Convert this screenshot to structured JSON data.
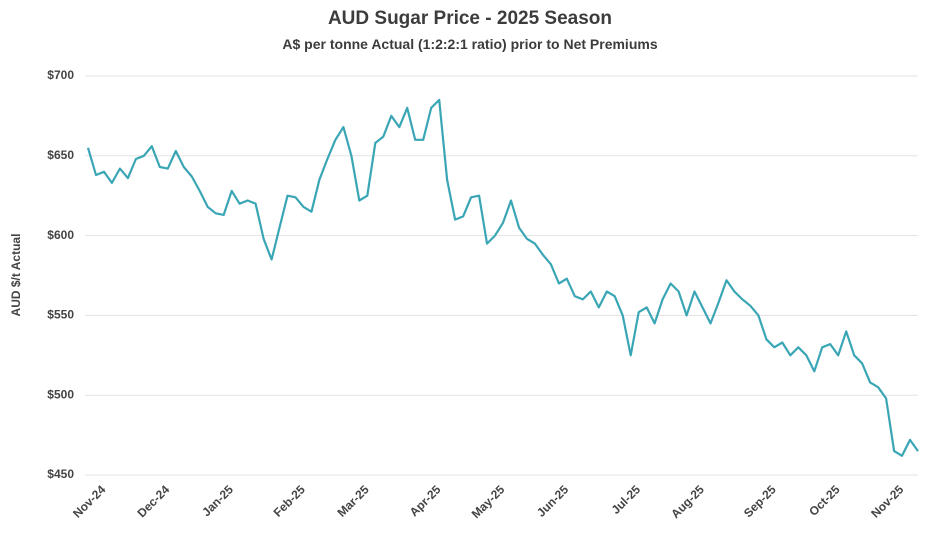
{
  "chart_data": {
    "type": "line",
    "title": "AUD Sugar Price - 2025 Season",
    "subtitle": "A$ per tonne Actual (1:2:2:1 ratio) prior to Net Premiums",
    "y_label": "AUD $/t Actual",
    "categories": [
      null,
      null,
      "Nov-24",
      null,
      null,
      null,
      null,
      null,
      null,
      null,
      "Dec-24",
      null,
      null,
      null,
      null,
      null,
      null,
      null,
      "Jan-25",
      null,
      null,
      null,
      null,
      null,
      null,
      null,
      null,
      "Feb-25",
      null,
      null,
      null,
      null,
      null,
      null,
      null,
      "Mar-25",
      null,
      null,
      null,
      null,
      null,
      null,
      null,
      null,
      "Apr-25",
      null,
      null,
      null,
      null,
      null,
      null,
      null,
      "May-25",
      null,
      null,
      null,
      null,
      null,
      null,
      null,
      "Jun-25",
      null,
      null,
      null,
      null,
      null,
      null,
      null,
      null,
      "Jul-25",
      null,
      null,
      null,
      null,
      null,
      null,
      null,
      "Aug-25",
      null,
      null,
      null,
      null,
      null,
      null,
      null,
      null,
      "Sep-25",
      null,
      null,
      null,
      null,
      null,
      null,
      null,
      "Oct-25",
      null,
      null,
      null,
      null,
      null,
      null,
      null,
      "Nov-25",
      null,
      null
    ],
    "series": [
      {
        "name": "AUD Sugar Price",
        "color": "#3aa6b5",
        "values": [
          655,
          638,
          640,
          633,
          642,
          636,
          648,
          650,
          656,
          643,
          642,
          653,
          643,
          637,
          628,
          618,
          614,
          613,
          628,
          620,
          622,
          620,
          598,
          585,
          605,
          625,
          624,
          618,
          615,
          635,
          648,
          660,
          668,
          650,
          622,
          625,
          658,
          662,
          675,
          668,
          680,
          660,
          660,
          680,
          685,
          635,
          610,
          612,
          624,
          625,
          595,
          600,
          608,
          622,
          605,
          598,
          595,
          588,
          582,
          570,
          573,
          562,
          560,
          565,
          555,
          565,
          562,
          550,
          525,
          552,
          555,
          545,
          560,
          570,
          565,
          550,
          565,
          555,
          545,
          558,
          572,
          565,
          560,
          556,
          550,
          535,
          530,
          533,
          525,
          530,
          525,
          515,
          530,
          532,
          525,
          540,
          525,
          520,
          508,
          505,
          498,
          465,
          462,
          472,
          465
        ]
      }
    ],
    "ylim": [
      450,
      700
    ],
    "yticks": [
      {
        "value": 450,
        "label": "$450"
      },
      {
        "value": 500,
        "label": "$500"
      },
      {
        "value": 550,
        "label": "$550"
      },
      {
        "value": 600,
        "label": "$600"
      },
      {
        "value": 650,
        "label": "$650"
      },
      {
        "value": 700,
        "label": "$700"
      }
    ],
    "grid": true
  }
}
